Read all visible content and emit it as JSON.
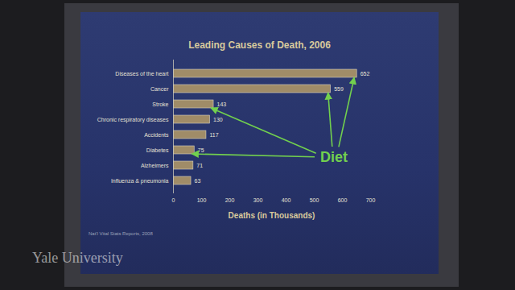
{
  "chart_data": {
    "type": "bar",
    "orientation": "horizontal",
    "title": "Leading Causes of Death, 2006",
    "categories": [
      "Diseases of the heart",
      "Cancer",
      "Stroke",
      "Chronic respiratory diseases",
      "Accidents",
      "Diabetes",
      "Alzheimers",
      "Influenza & pneumonia"
    ],
    "values": [
      652,
      559,
      143,
      130,
      117,
      75,
      71,
      63
    ],
    "color": "#a08c68",
    "xlim": [
      0,
      700
    ],
    "xticks": [
      0,
      100,
      200,
      300,
      400,
      500,
      600,
      700
    ],
    "x_label": "Deaths (in Thousands)",
    "data_labels": true,
    "caption": "Nat'l Vital Stats Reports, 2008",
    "annotations": [
      {
        "text": "Diet",
        "targets": [
          "Diseases of the heart",
          "Cancer",
          "Stroke",
          "Diabetes"
        ]
      }
    ],
    "watermark": "Yale University"
  }
}
